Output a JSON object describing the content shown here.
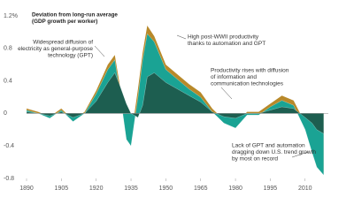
{
  "chart_data": {
    "type": "area",
    "title": [
      "Deviation from long-run average",
      "(GDP growth per worker)"
    ],
    "x": [
      1890,
      1895,
      1900,
      1905,
      1910,
      1915,
      1920,
      1925,
      1928,
      1930,
      1933,
      1935,
      1938,
      1940,
      1942,
      1945,
      1950,
      1955,
      1960,
      1965,
      1970,
      1975,
      1980,
      1985,
      1990,
      1995,
      2000,
      2005,
      2010,
      2013,
      2015,
      2018
    ],
    "series": [
      {
        "color": "#b8892a",
        "values": [
          0.06,
          0.02,
          -0.04,
          0.06,
          -0.08,
          0.02,
          0.28,
          0.6,
          0.72,
          0.38,
          -0.2,
          -0.3,
          0.3,
          0.75,
          1.08,
          0.95,
          0.6,
          0.48,
          0.36,
          0.26,
          0.06,
          -0.08,
          -0.14,
          0.02,
          0.02,
          0.12,
          0.22,
          0.16,
          -0.12,
          -0.4,
          -0.6,
          -0.72
        ]
      },
      {
        "color": "#1aa394",
        "values": [
          0.04,
          0.0,
          -0.06,
          0.04,
          -0.1,
          0.0,
          0.24,
          0.54,
          0.66,
          0.3,
          -0.32,
          -0.4,
          0.2,
          0.66,
          0.98,
          0.88,
          0.54,
          0.42,
          0.3,
          0.2,
          0.02,
          -0.12,
          -0.18,
          -0.02,
          -0.02,
          0.08,
          0.16,
          0.1,
          -0.2,
          -0.48,
          -0.66,
          -0.76
        ]
      },
      {
        "color": "#1d5e50",
        "values": [
          0.02,
          0.0,
          -0.03,
          0.02,
          -0.05,
          0.0,
          0.15,
          0.38,
          0.5,
          0.36,
          0.12,
          0.0,
          -0.05,
          0.1,
          0.45,
          0.5,
          0.38,
          0.3,
          0.22,
          0.14,
          0.02,
          -0.04,
          -0.06,
          0.0,
          0.0,
          0.04,
          0.08,
          0.06,
          -0.05,
          -0.12,
          -0.2,
          -0.25
        ]
      }
    ],
    "xlim": [
      1890,
      2020
    ],
    "xticks": [
      1890,
      1905,
      1920,
      1935,
      1950,
      1965,
      1980,
      1995,
      2010
    ],
    "ylim": [
      -0.8,
      1.2
    ],
    "yticks": [
      {
        "value": 1.2,
        "label": "1.2%"
      },
      0.8,
      0.4,
      0,
      -0.4,
      -0.8
    ],
    "annotations": [
      [
        "Widespread diffusion of",
        "electricity as general-purpose",
        "technology (GPT)"
      ],
      [
        "High post-WWII productivity",
        "thanks to automation and GPT"
      ],
      [
        "Productivity rises with diffusion",
        "of information and",
        "communication technologies"
      ],
      [
        "Lack of GPT and automation",
        "dragging down U.S. trend growth",
        "by most on record"
      ]
    ]
  }
}
